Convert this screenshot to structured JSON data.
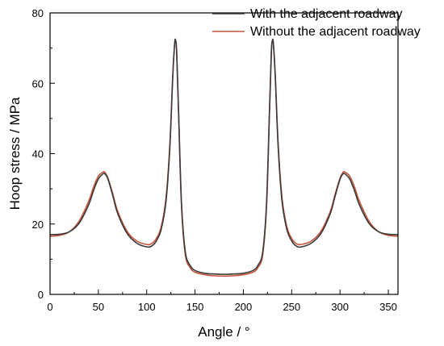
{
  "chart_data": {
    "type": "line",
    "xlabel": "Angle / °",
    "ylabel": "Hoop stress / MPa",
    "xlim": [
      0,
      360
    ],
    "ylim": [
      0,
      80
    ],
    "xticks": [
      0,
      50,
      100,
      150,
      200,
      250,
      300,
      350
    ],
    "yticks": [
      0,
      20,
      40,
      60,
      80
    ],
    "grid": false,
    "legend_position": "top-right",
    "series": [
      {
        "name": "With the adjacent roadway",
        "color": "#3a3a3a",
        "x": [
          0,
          10,
          20,
          30,
          40,
          45,
          50,
          55,
          57,
          60,
          65,
          70,
          80,
          90,
          100,
          105,
          110,
          115,
          120,
          124,
          127,
          129,
          130,
          131,
          133,
          136,
          140,
          145,
          150,
          160,
          170,
          180,
          190,
          200,
          210,
          215,
          220,
          224,
          227,
          229,
          230,
          231,
          233,
          236,
          240,
          245,
          250,
          255,
          260,
          270,
          280,
          290,
          295,
          300,
          303,
          305,
          310,
          315,
          320,
          330,
          340,
          350,
          360
        ],
        "values": [
          17.0,
          17.1,
          17.8,
          20.2,
          25.5,
          29.5,
          32.8,
          34.3,
          34.2,
          32.7,
          28.0,
          23.0,
          17.2,
          14.5,
          13.5,
          13.7,
          15.2,
          18.5,
          26.5,
          42.0,
          62.0,
          71.5,
          72.0,
          69.0,
          52.0,
          26.0,
          12.0,
          8.2,
          6.8,
          6.0,
          5.8,
          5.7,
          5.8,
          6.0,
          6.8,
          8.2,
          12.0,
          26.0,
          52.0,
          69.0,
          72.0,
          71.5,
          62.0,
          42.0,
          26.5,
          18.5,
          15.2,
          13.7,
          13.5,
          14.5,
          17.2,
          23.0,
          28.0,
          32.7,
          34.2,
          34.3,
          32.8,
          29.5,
          25.5,
          20.2,
          17.8,
          17.1,
          17.0
        ]
      },
      {
        "name": "Without the adjacent roadway",
        "color": "#c8523a",
        "x": [
          0,
          10,
          20,
          30,
          40,
          45,
          50,
          55,
          57,
          60,
          65,
          70,
          80,
          90,
          100,
          105,
          110,
          115,
          120,
          124,
          127,
          129,
          130,
          131,
          133,
          136,
          140,
          145,
          150,
          160,
          170,
          180,
          190,
          200,
          210,
          215,
          220,
          224,
          227,
          229,
          230,
          231,
          233,
          236,
          240,
          245,
          250,
          255,
          260,
          270,
          280,
          290,
          295,
          300,
          303,
          305,
          310,
          315,
          320,
          330,
          340,
          350,
          360
        ],
        "values": [
          16.5,
          16.8,
          17.8,
          20.8,
          26.5,
          30.5,
          33.6,
          34.8,
          34.6,
          33.0,
          28.5,
          23.6,
          17.8,
          15.1,
          14.2,
          14.4,
          15.9,
          19.2,
          27.5,
          43.0,
          62.5,
          71.5,
          72.0,
          69.0,
          51.0,
          25.0,
          11.2,
          7.6,
          6.3,
          5.6,
          5.3,
          5.2,
          5.3,
          5.6,
          6.3,
          7.6,
          11.2,
          25.0,
          51.0,
          69.0,
          72.0,
          71.5,
          62.5,
          43.0,
          27.5,
          19.2,
          15.9,
          14.4,
          14.2,
          15.1,
          17.8,
          23.6,
          28.5,
          33.0,
          34.6,
          34.8,
          33.6,
          30.5,
          26.5,
          20.8,
          17.8,
          16.8,
          16.5
        ]
      }
    ]
  }
}
